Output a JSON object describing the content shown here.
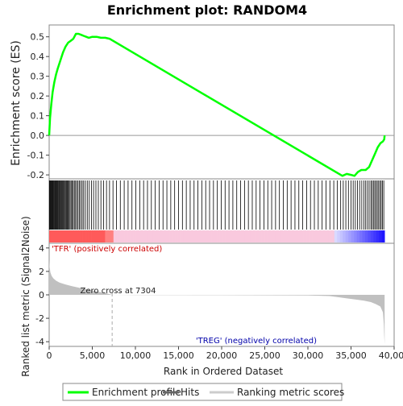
{
  "chart_data": {
    "type": "line",
    "title": "Enrichment plot: RANDOM4",
    "es_ylabel": "Enrichment score (ES)",
    "metric_ylabel": "Ranked list metric (Signal2Noise)",
    "xlabel": "Rank in Ordered Dataset",
    "es_ylim": [
      -0.22,
      0.56
    ],
    "es_yticks": [
      -0.2,
      -0.1,
      0.0,
      0.1,
      0.2,
      0.3,
      0.4,
      0.5
    ],
    "metric_ylim": [
      -4.4,
      4.4
    ],
    "metric_yticks": [
      -4,
      -2,
      0,
      2,
      4
    ],
    "xlim": [
      0,
      40000
    ],
    "xticks": [
      0,
      5000,
      10000,
      15000,
      20000,
      25000,
      30000,
      35000,
      40000
    ],
    "xtick_labels": [
      "0",
      "5,000",
      "10,000",
      "15,000",
      "20,000",
      "25,000",
      "30,000",
      "35,000",
      "40,000"
    ],
    "es_ytick_labels": [
      "-0.2",
      "-0.1",
      "0.0",
      "0.1",
      "0.2",
      "0.3",
      "0.4",
      "0.5"
    ],
    "metric_ytick_labels": [
      "-4",
      "-2",
      "0",
      "2",
      "4"
    ],
    "total_ranks": 38900,
    "zero_cross": 7304,
    "zero_cross_label": "Zero cross at 7304",
    "pos_label": "'TFR' (positively correlated)",
    "neg_label": "'TREG' (negatively correlated)",
    "enrichment_profile": {
      "x": [
        0,
        100,
        250,
        400,
        600,
        800,
        1000,
        1300,
        1600,
        1900,
        2200,
        2500,
        2800,
        3100,
        3400,
        3700,
        4000,
        4300,
        4600,
        5000,
        5500,
        6000,
        6500,
        7000,
        34000,
        34500,
        35000,
        35400,
        35800,
        36200,
        36700,
        37100,
        37500,
        37800,
        38100,
        38400,
        38700,
        38850,
        38900
      ],
      "es": [
        0.0,
        0.09,
        0.16,
        0.22,
        0.27,
        0.31,
        0.34,
        0.38,
        0.42,
        0.45,
        0.47,
        0.48,
        0.49,
        0.515,
        0.515,
        0.51,
        0.505,
        0.5,
        0.495,
        0.5,
        0.5,
        0.495,
        0.495,
        0.49,
        -0.205,
        -0.195,
        -0.2,
        -0.205,
        -0.185,
        -0.175,
        -0.175,
        -0.16,
        -0.12,
        -0.09,
        -0.06,
        -0.04,
        -0.03,
        -0.02,
        0.0
      ]
    },
    "series": [
      {
        "name": "Enrichment profile",
        "color": "#00ff00"
      },
      {
        "name": "Hits",
        "color": "#000000"
      },
      {
        "name": "Ranking metric scores",
        "color": "#cccccc"
      }
    ],
    "hits": [
      30,
      90,
      160,
      230,
      300,
      370,
      450,
      520,
      600,
      680,
      760,
      840,
      930,
      1010,
      1100,
      1180,
      1270,
      1350,
      1440,
      1530,
      1620,
      1710,
      1800,
      1900,
      2000,
      2100,
      2200,
      2310,
      2420,
      2540,
      2660,
      2790,
      2920,
      3060,
      3200,
      3350,
      3500,
      3660,
      3830,
      4000,
      4200,
      4420,
      4650,
      4900,
      5150,
      5420,
      5700,
      6000,
      6320,
      6650,
      7000,
      7400,
      7800,
      8250,
      8700,
      9150,
      9600,
      10050,
      10500,
      10950,
      11400,
      11850,
      12300,
      12750,
      13200,
      13650,
      14100,
      14550,
      15000,
      15450,
      15900,
      16350,
      16800,
      17250,
      17700,
      18150,
      18600,
      19050,
      19500,
      19950,
      20400,
      20850,
      21300,
      21750,
      22200,
      22650,
      23100,
      23550,
      24000,
      24450,
      24900,
      25350,
      25800,
      26250,
      26700,
      27150,
      27600,
      28050,
      28500,
      28950,
      29400,
      29850,
      30300,
      30750,
      31200,
      31650,
      32100,
      32550,
      33000,
      33400,
      33800,
      34100,
      34400,
      34700,
      35000,
      35250,
      35500,
      35750,
      36000,
      36250,
      36500,
      36700,
      36900,
      37100,
      37300,
      37450,
      37600,
      37750,
      37900,
      38050,
      38200,
      38350,
      38500,
      38650,
      38800
    ],
    "metric": {
      "x": [
        0,
        50,
        150,
        300,
        500,
        800,
        1200,
        1800,
        2600,
        3500,
        4500,
        5500,
        6500,
        7304,
        10000,
        20000,
        30000,
        32500,
        33500,
        34500,
        35500,
        36500,
        37300,
        37900,
        38400,
        38700,
        38800,
        38850,
        38900
      ],
      "values": [
        3.0,
        2.4,
        1.9,
        1.6,
        1.4,
        1.2,
        1.05,
        0.9,
        0.75,
        0.6,
        0.45,
        0.3,
        0.15,
        0.0,
        -0.02,
        -0.03,
        -0.05,
        -0.1,
        -0.2,
        -0.3,
        -0.4,
        -0.5,
        -0.62,
        -0.8,
        -1.0,
        -1.5,
        -2.5,
        -3.5,
        -4.2
      ]
    }
  }
}
